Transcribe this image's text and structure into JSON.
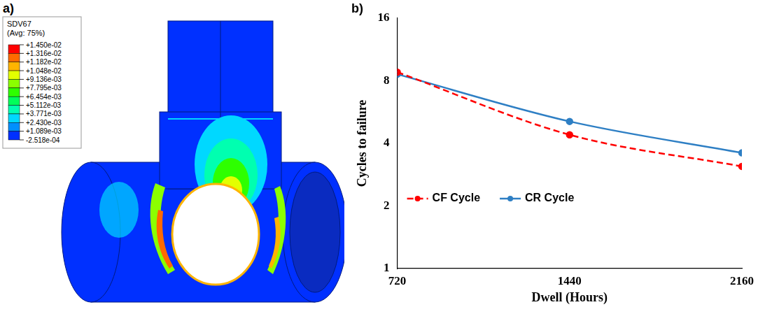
{
  "chart_data": [
    {
      "type": "contour",
      "panel": "a)",
      "title": "SDV67",
      "subtitle": "(Avg: 75%)",
      "colorbar": {
        "range": [
          -0.0002518,
          0.0145
        ],
        "ticks": [
          {
            "value": 0.0145,
            "label": "+1.450e-02"
          },
          {
            "value": 0.01316,
            "label": "+1.316e-02"
          },
          {
            "value": 0.01182,
            "label": "+1.182e-02"
          },
          {
            "value": 0.01048,
            "label": "+1.048e-02"
          },
          {
            "value": 0.009136,
            "label": "+9.136e-03"
          },
          {
            "value": 0.007795,
            "label": "+7.795e-03"
          },
          {
            "value": 0.006454,
            "label": "+6.454e-03"
          },
          {
            "value": 0.005112,
            "label": "+5.112e-03"
          },
          {
            "value": 0.003771,
            "label": "+3.771e-03"
          },
          {
            "value": 0.00243,
            "label": "+2.430e-03"
          },
          {
            "value": 0.001089,
            "label": "+1.089e-03"
          },
          {
            "value": -0.0002518,
            "label": "-2.518e-04"
          }
        ],
        "colors": [
          "#ff0000",
          "#ff6a00",
          "#ffb400",
          "#e3ff00",
          "#8bff00",
          "#2eff00",
          "#00ff5a",
          "#00ffb0",
          "#00d8ff",
          "#0090ff",
          "#0030ff"
        ]
      }
    },
    {
      "type": "line",
      "panel": "b)",
      "x_label": "Dwell (Hours)",
      "y_label": "Cycles to failure",
      "x": [
        720,
        1440,
        2160
      ],
      "series": [
        {
          "name": "CF Cycle",
          "color": "#ff0000",
          "values": [
            8.8,
            4.4,
            3.1
          ],
          "marker": "circle",
          "line_style": "dashed"
        },
        {
          "name": "CR Cycle",
          "color": "#2e7fc4",
          "values": [
            8.6,
            5.1,
            3.6
          ],
          "marker": "circle",
          "line_style": "solid"
        }
      ],
      "xlim": [
        720,
        2160
      ],
      "xticks": [
        720,
        1440,
        2160
      ],
      "ylim": [
        1,
        16
      ],
      "yticks": [
        1,
        2,
        4,
        8,
        16
      ],
      "log": "y",
      "grid": false,
      "legend": "lower left"
    }
  ]
}
